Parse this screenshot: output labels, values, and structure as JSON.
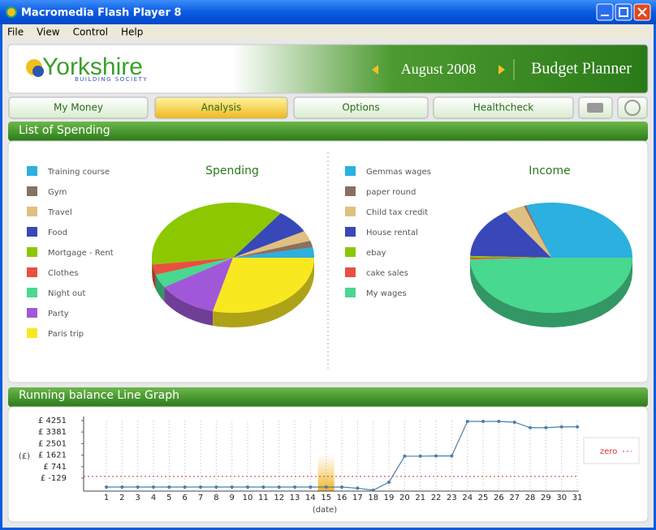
{
  "window": {
    "title": "Macromedia Flash Player 8"
  },
  "menu": [
    "File",
    "View",
    "Control",
    "Help"
  ],
  "header": {
    "logo": "Yorkshire",
    "logo_sub": "BUILDING SOCIETY",
    "month": "August 2008",
    "app": "Budget Planner"
  },
  "tabs": [
    "My Money",
    "Analysis",
    "Options",
    "Healthcheck"
  ],
  "active_tab": 1,
  "panels": [
    "List of Spending",
    "Running balance Line Graph"
  ],
  "chart_data": [
    {
      "type": "pie",
      "title": "Spending",
      "categories": [
        "Training course",
        "Gym",
        "Travel",
        "Food",
        "Mortgage - Rent",
        "Clothes",
        "Night out",
        "Party",
        "Paris trip"
      ],
      "values": [
        3,
        2,
        3,
        7,
        37,
        3,
        4,
        12,
        29
      ],
      "colors": [
        "#2bb0e0",
        "#8a7060",
        "#e0c080",
        "#3848b8",
        "#8cc800",
        "#e85040",
        "#48d890",
        "#a058d8",
        "#f8e820"
      ]
    },
    {
      "type": "pie",
      "title": "Income",
      "categories": [
        "Gemmas wages",
        "paper round",
        "Child tax credit",
        "House rental",
        "ebay",
        "cake sales",
        "My wages"
      ],
      "values": [
        30,
        0.5,
        4,
        15,
        0.5,
        0.5,
        49.5
      ],
      "colors": [
        "#2bb0e0",
        "#8a7060",
        "#e0c080",
        "#3848b8",
        "#8cc800",
        "#e85040",
        "#48d890"
      ]
    },
    {
      "type": "line",
      "xlabel": "(date)",
      "ylabel": "(£)",
      "x": [
        1,
        2,
        3,
        4,
        5,
        6,
        7,
        8,
        9,
        10,
        11,
        12,
        13,
        14,
        15,
        16,
        17,
        18,
        19,
        20,
        21,
        22,
        23,
        24,
        25,
        26,
        27,
        28,
        29,
        30,
        31
      ],
      "series": [
        {
          "name": "balance",
          "color": "#4a7fa8",
          "values": [
            -811,
            -811,
            -811,
            -811,
            -811,
            -811,
            -811,
            -811,
            -811,
            -811,
            -811,
            -811,
            -811,
            -811,
            -811,
            -811,
            -900,
            -1050,
            -440,
            1540,
            1540,
            1560,
            1560,
            4190,
            4190,
            4190,
            4130,
            3710,
            3710,
            3775,
            3775
          ]
        }
      ],
      "xlim": [
        -0.45,
        31.1
      ],
      "ylim": [
        -1120,
        4560
      ],
      "xticks": [
        1,
        2,
        3,
        4,
        5,
        6,
        7,
        8,
        9,
        10,
        11,
        12,
        13,
        14,
        15,
        16,
        17,
        18,
        19,
        20,
        21,
        22,
        23,
        24,
        25,
        26,
        27,
        28,
        29,
        30,
        31
      ],
      "yticks": [
        {
          "value": 4251,
          "label": "£ 4251"
        },
        {
          "value": 3381,
          "label": "£ 3381"
        },
        {
          "value": 2501,
          "label": "£ 2501"
        },
        {
          "value": 1621,
          "label": "£ 1621"
        },
        {
          "value": 741,
          "label": "£ 741"
        },
        {
          "value": -129,
          "label": "£ -129"
        }
      ],
      "reference_line": {
        "value": 0,
        "label": "zero",
        "color": "#e03030"
      },
      "highlight_x": 15,
      "grid": true
    }
  ]
}
